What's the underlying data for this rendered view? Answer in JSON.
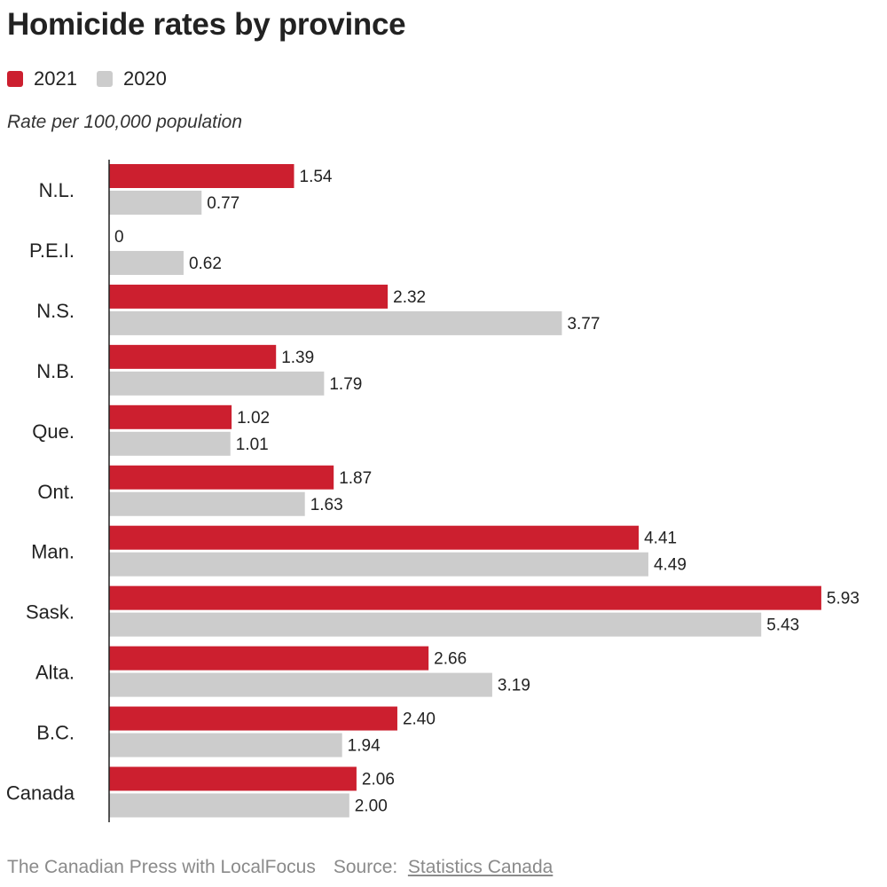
{
  "title": "Homicide rates by province",
  "subtitle": "Rate per 100,000 population",
  "legend": [
    {
      "label": "2021",
      "color": "#cc1f2f"
    },
    {
      "label": "2020",
      "color": "#cccccc"
    }
  ],
  "footer": {
    "credit": "The Canadian Press with LocalFocus",
    "source_label": "Source:",
    "source_link": "Statistics Canada"
  },
  "chart_data": {
    "type": "bar",
    "orientation": "horizontal",
    "title": "Homicide rates by province",
    "subtitle": "Rate per 100,000 population",
    "categories": [
      "N.L.",
      "P.E.I.",
      "N.S.",
      "N.B.",
      "Que.",
      "Ont.",
      "Man.",
      "Sask.",
      "Alta.",
      "B.C.",
      "Canada"
    ],
    "series": [
      {
        "name": "2021",
        "color": "#cc1f2f",
        "values": [
          1.54,
          0,
          2.32,
          1.39,
          1.02,
          1.87,
          4.41,
          5.93,
          2.66,
          2.4,
          2.06
        ],
        "labels": [
          "1.54",
          "0",
          "2.32",
          "1.39",
          "1.02",
          "1.87",
          "4.41",
          "5.93",
          "2.66",
          "2.40",
          "2.06"
        ]
      },
      {
        "name": "2020",
        "color": "#cccccc",
        "values": [
          0.77,
          0.62,
          3.77,
          1.79,
          1.01,
          1.63,
          4.49,
          5.43,
          3.19,
          1.94,
          2.0
        ],
        "labels": [
          "0.77",
          "0.62",
          "3.77",
          "1.79",
          "1.01",
          "1.63",
          "4.49",
          "5.43",
          "3.19",
          "1.94",
          "2.00"
        ]
      }
    ],
    "xlim": [
      0,
      5.93
    ],
    "grid": false,
    "legend_position": "top-left"
  }
}
